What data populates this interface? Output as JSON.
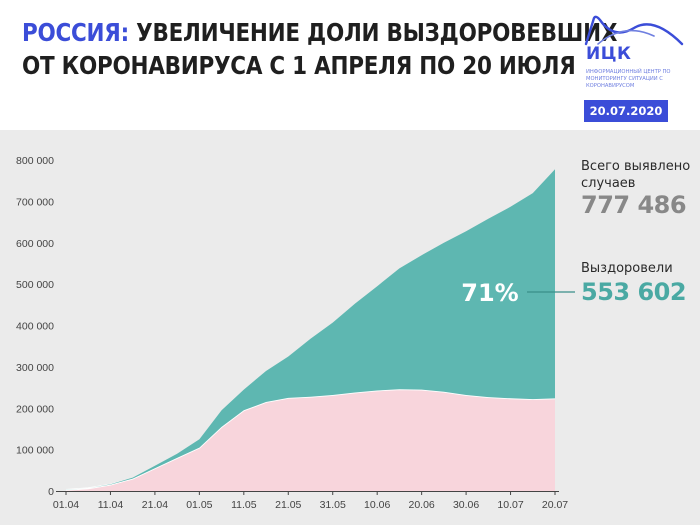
{
  "header": {
    "title_accent": "РОССИЯ:",
    "title_line1_rest": "УВЕЛИЧЕНИЕ ДОЛИ ВЫЗДОРОВЕВШИХ",
    "title_line2": "ОТ КОРОНАВИРУСА С 1 АПРЕЛЯ ПО 20 ИЮЛЯ",
    "accent_color": "#3b4dd8"
  },
  "logo": {
    "name": "ИЦК",
    "subtitle": "ИНФОРМАЦИОННЫЙ ЦЕНТР ПО МОНИТОРИНГУ СИТУАЦИИ С КОРОНАВИРУСОМ",
    "date": "20.07.2020"
  },
  "side": {
    "total_label": "Всего выявлено случаев",
    "total_value": "777 486",
    "recovered_label": "Выздоровели",
    "recovered_value": "553 602",
    "percent": "71%"
  },
  "chart_data": {
    "type": "area",
    "stacked": true,
    "x": [
      "01.04",
      "06.04",
      "11.04",
      "16.04",
      "21.04",
      "26.04",
      "01.05",
      "06.05",
      "11.05",
      "16.05",
      "21.05",
      "26.05",
      "31.05",
      "05.06",
      "10.06",
      "15.06",
      "20.06",
      "25.06",
      "30.06",
      "05.07",
      "10.07",
      "15.07",
      "20.07"
    ],
    "xticks": [
      "01.04",
      "11.04",
      "21.04",
      "01.05",
      "11.05",
      "21.05",
      "31.05",
      "10.06",
      "20.06",
      "30.06",
      "10.07",
      "20.07"
    ],
    "series": [
      {
        "values": [
          2700,
          6500,
          15500,
          30000,
          55000,
          80000,
          105000,
          155000,
          195000,
          215000,
          225000,
          228000,
          232000,
          238000,
          243000,
          246000,
          245000,
          240000,
          232000,
          227000,
          224000,
          222000,
          223900
        ],
        "color": "#f8d5dc"
      },
      {
        "values": [
          100,
          300,
          1000,
          2500,
          6000,
          10000,
          20000,
          40000,
          50000,
          75000,
          100000,
          140000,
          175000,
          215000,
          252000,
          292000,
          325000,
          360000,
          396000,
          431000,
          463000,
          498000,
          553602
        ],
        "color": "#5eb7b1"
      }
    ],
    "ylim": [
      0,
      800000
    ],
    "yticks": [
      0,
      100000,
      200000,
      300000,
      400000,
      500000,
      600000,
      700000,
      800000
    ],
    "ytick_labels": [
      "0",
      "100 000",
      "200 000",
      "300 000",
      "400 000",
      "500 000",
      "600 000",
      "700 000",
      "800 000"
    ],
    "grid": false,
    "background": "#ebebeb",
    "total_color": "#888888",
    "recovered_color": "#4aa9a3"
  }
}
